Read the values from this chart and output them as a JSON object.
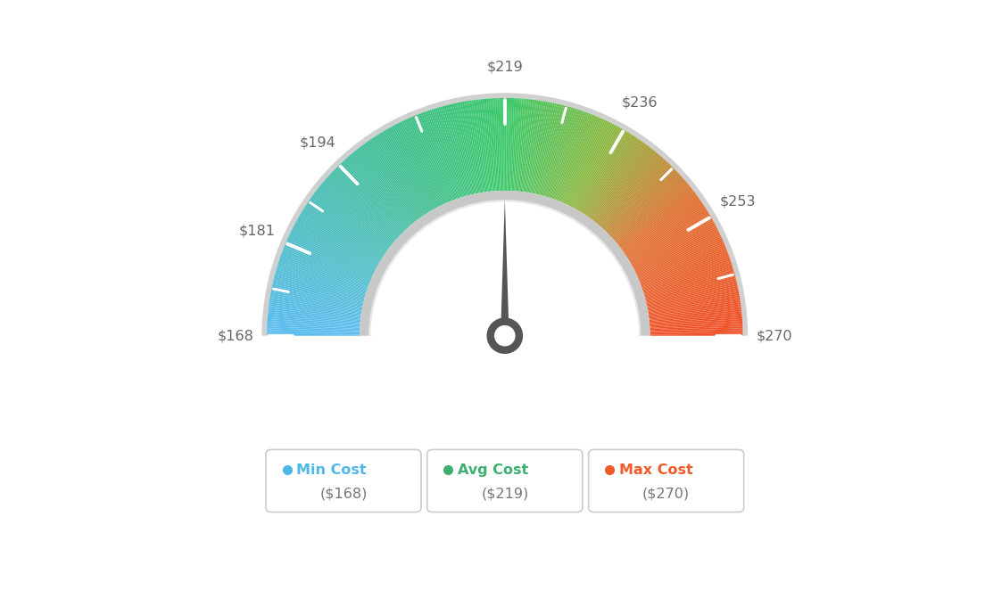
{
  "min_val": 168,
  "max_val": 270,
  "avg_val": 219,
  "tick_labels": [
    "$168",
    "$181",
    "$194",
    "$219",
    "$236",
    "$253",
    "$270"
  ],
  "tick_values": [
    168,
    181,
    194,
    219,
    236,
    253,
    270
  ],
  "legend": [
    {
      "label": "Min Cost",
      "value": "($168)",
      "color": "#4db8e8"
    },
    {
      "label": "Avg Cost",
      "value": "($219)",
      "color": "#3daf6e"
    },
    {
      "label": "Max Cost",
      "value": "($270)",
      "color": "#f05a28"
    }
  ],
  "background_color": "#ffffff",
  "needle_color": "#555555",
  "hub_outer_color": "#555555",
  "hub_inner_color": "#ffffff",
  "outer_border_color": "#d0d0d0",
  "inner_border_color": "#d0d0d0"
}
